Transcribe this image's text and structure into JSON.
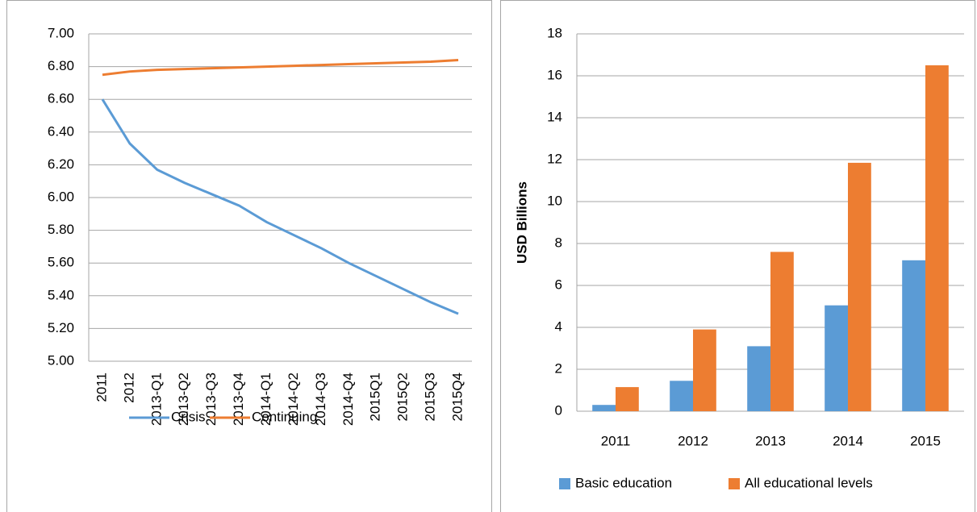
{
  "chart_data": [
    {
      "type": "line",
      "categories": [
        "2011",
        "2012",
        "2013-Q1",
        "2013-Q2",
        "2013-Q3",
        "2013-Q4",
        "2014-Q1",
        "2014-Q2",
        "2014-Q3",
        "2014-Q4",
        "2015Q1",
        "2015Q2",
        "2015Q3",
        "2015Q4"
      ],
      "series": [
        {
          "name": "Crisis",
          "color": "#5b9bd5",
          "values": [
            6.6,
            6.33,
            6.17,
            6.09,
            6.02,
            5.95,
            5.85,
            5.77,
            5.69,
            5.6,
            5.52,
            5.44,
            5.36,
            5.29
          ]
        },
        {
          "name": "Continuing",
          "color": "#ed7d31",
          "values": [
            6.75,
            6.77,
            6.78,
            6.785,
            6.79,
            6.795,
            6.8,
            6.805,
            6.81,
            6.815,
            6.82,
            6.825,
            6.83,
            6.84
          ]
        }
      ],
      "ylim": [
        5.0,
        7.0
      ],
      "yticks": [
        {
          "value": 5.0,
          "label": "5.00"
        },
        {
          "value": 5.2,
          "label": "5.20"
        },
        {
          "value": 5.4,
          "label": "5.40"
        },
        {
          "value": 5.6,
          "label": "5.60"
        },
        {
          "value": 5.8,
          "label": "5.80"
        },
        {
          "value": 6.0,
          "label": "6.00"
        },
        {
          "value": 6.2,
          "label": "6.20"
        },
        {
          "value": 6.4,
          "label": "6.40"
        },
        {
          "value": 6.6,
          "label": "6.60"
        },
        {
          "value": 6.8,
          "label": "6.80"
        },
        {
          "value": 7.0,
          "label": "7.00"
        }
      ],
      "grid": true,
      "legend": "bottom"
    },
    {
      "type": "bar",
      "y_label": "USD Billions",
      "categories": [
        "2011",
        "2012",
        "2013",
        "2014",
        "2015"
      ],
      "series": [
        {
          "name": "Basic education",
          "color": "#5b9bd5",
          "values": [
            0.3,
            1.45,
            3.1,
            5.05,
            7.2
          ]
        },
        {
          "name": "All educational levels",
          "color": "#ed7d31",
          "values": [
            1.15,
            3.9,
            7.6,
            11.85,
            16.5
          ]
        }
      ],
      "ylim": [
        0,
        18
      ],
      "yticks": [
        0,
        2,
        4,
        6,
        8,
        10,
        12,
        14,
        16,
        18
      ],
      "grid": true,
      "legend": "bottom"
    }
  ]
}
